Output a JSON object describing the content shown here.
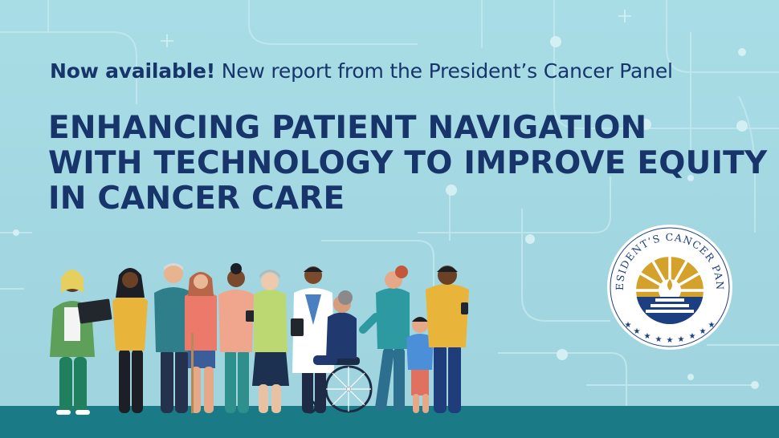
{
  "subhead": {
    "lead": "Now available!",
    "rest": "New report from the President’s Cancer Panel"
  },
  "headline": [
    "ENHANCING PATIENT NAVIGATION",
    "WITH TECHNOLOGY TO IMPROVE EQUITY",
    "IN CANCER CARE"
  ],
  "seal": {
    "text": "PRESIDENT’S CANCER PANEL"
  },
  "colors": {
    "background": "#a5d9e3",
    "text": "#17356b",
    "ground": "#1a7b87",
    "seal_gold": "#d4a22a",
    "seal_blue": "#1c3f82"
  },
  "icons": [
    "people-illustration",
    "seal-logo",
    "plus-sparkle-icon"
  ]
}
